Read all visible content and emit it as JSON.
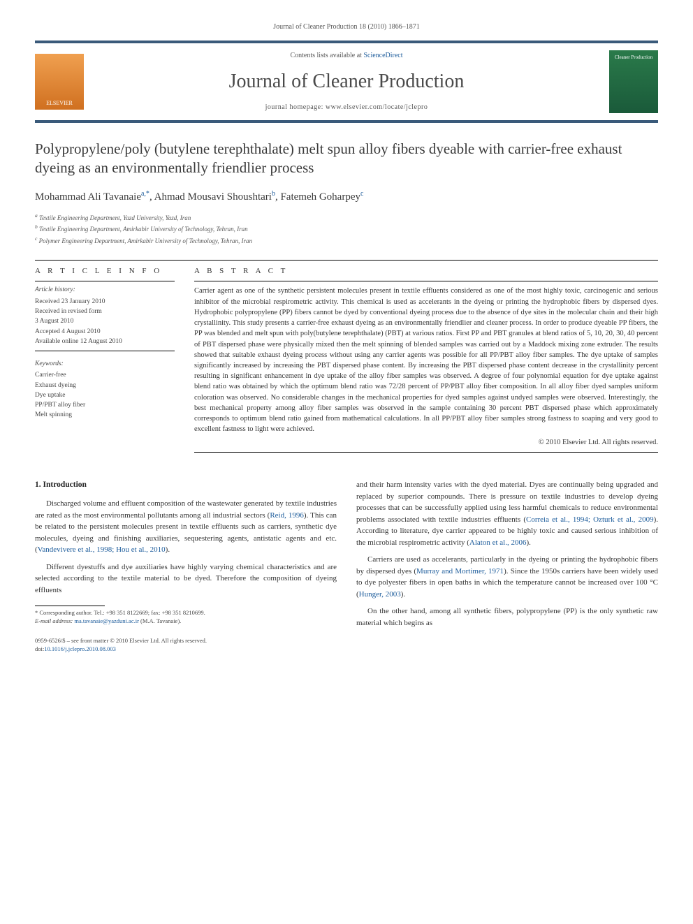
{
  "header": {
    "citation": "Journal of Cleaner Production 18 (2010) 1866–1871",
    "contents_prefix": "Contents lists available at ",
    "contents_link": "ScienceDirect",
    "journal_name": "Journal of Cleaner Production",
    "homepage_prefix": "journal homepage: ",
    "homepage_url": "www.elsevier.com/locate/jclepro",
    "elsevier_label": "ELSEVIER",
    "cover_label": "Cleaner Production"
  },
  "article": {
    "title": "Polypropylene/poly (butylene terephthalate) melt spun alloy fibers dyeable with carrier-free exhaust dyeing as an environmentally friendlier process",
    "authors_html": "Mohammad Ali Tavanaie",
    "author1": "Mohammad Ali Tavanaie",
    "author1_sup": "a,*",
    "author2": "Ahmad Mousavi Shoushtari",
    "author2_sup": "b",
    "author3": "Fatemeh Goharpey",
    "author3_sup": "c",
    "aff_a": "Textile Engineering Department, Yazd University, Yazd, Iran",
    "aff_b": "Textile Engineering Department, Amirkabir University of Technology, Tehran, Iran",
    "aff_c": "Polymer Engineering Department, Amirkabir University of Technology, Tehran, Iran"
  },
  "info": {
    "heading": "A R T I C L E   I N F O",
    "history_label": "Article history:",
    "received": "Received 23 January 2010",
    "revised": "Received in revised form",
    "revised_date": "3 August 2010",
    "accepted": "Accepted 4 August 2010",
    "online": "Available online 12 August 2010",
    "keywords_label": "Keywords:",
    "kw1": "Carrier-free",
    "kw2": "Exhaust dyeing",
    "kw3": "Dye uptake",
    "kw4": "PP/PBT alloy fiber",
    "kw5": "Melt spinning"
  },
  "abstract": {
    "heading": "A B S T R A C T",
    "text": "Carrier agent as one of the synthetic persistent molecules present in textile effluents considered as one of the most highly toxic, carcinogenic and serious inhibitor of the microbial respirometric activity. This chemical is used as accelerants in the dyeing or printing the hydrophobic fibers by dispersed dyes. Hydrophobic polypropylene (PP) fibers cannot be dyed by conventional dyeing process due to the absence of dye sites in the molecular chain and their high crystallinity. This study presents a carrier-free exhaust dyeing as an environmentally friendlier and cleaner process. In order to produce dyeable PP fibers, the PP was blended and melt spun with poly(butylene terephthalate) (PBT) at various ratios. First PP and PBT granules at blend ratios of 5, 10, 20, 30, 40 percent of PBT dispersed phase were physically mixed then the melt spinning of blended samples was carried out by a Maddock mixing zone extruder. The results showed that suitable exhaust dyeing process without using any carrier agents was possible for all PP/PBT alloy fiber samples. The dye uptake of samples significantly increased by increasing the PBT dispersed phase content. By increasing the PBT dispersed phase content decrease in the crystallinity percent resulting in significant enhancement in dye uptake of the alloy fiber samples was observed. A degree of four polynomial equation for dye uptake against blend ratio was obtained by which the optimum blend ratio was 72/28 percent of PP/PBT alloy fiber composition. In all alloy fiber dyed samples uniform coloration was observed. No considerable changes in the mechanical properties for dyed samples against undyed samples were observed. Interestingly, the best mechanical property among alloy fiber samples was observed in the sample containing 30 percent PBT dispersed phase which approximately corresponds to optimum blend ratio gained from mathematical calculations. In all PP/PBT alloy fiber samples strong fastness to soaping and very good to excellent fastness to light were achieved.",
    "copyright": "© 2010 Elsevier Ltd. All rights reserved."
  },
  "body": {
    "section1_heading": "1. Introduction",
    "p1_a": "Discharged volume and effluent composition of the wastewater generated by textile industries are rated as the most environmental pollutants among all industrial sectors (",
    "p1_cite1": "Reid, 1996",
    "p1_b": "). This can be related to the persistent molecules present in textile effluents such as carriers, synthetic dye molecules, dyeing and finishing auxiliaries, sequestering agents, antistatic agents and etc. (",
    "p1_cite2": "Vandevivere et al., 1998; Hou et al., 2010",
    "p1_c": ").",
    "p2": "Different dyestuffs and dye auxiliaries have highly varying chemical characteristics and are selected according to the textile material to be dyed. Therefore the composition of dyeing effluents",
    "p3_a": "and their harm intensity varies with the dyed material. Dyes are continually being upgraded and replaced by superior compounds. There is pressure on textile industries to develop dyeing processes that can be successfully applied using less harmful chemicals to reduce environmental problems associated with textile industries effluents (",
    "p3_cite1": "Correia et al., 1994; Ozturk et al., 2009",
    "p3_b": "). According to literature, dye carrier appeared to be highly toxic and caused serious inhibition of the microbial respirometric activity (",
    "p3_cite2": "Alaton et al., 2006",
    "p3_c": ").",
    "p4_a": "Carriers are used as accelerants, particularly in the dyeing or printing the hydrophobic fibers by dispersed dyes (",
    "p4_cite1": "Murray and Mortimer, 1971",
    "p4_b": "). Since the 1950s carriers have been widely used to dye polyester fibers in open baths in which the temperature cannot be increased over 100 °C (",
    "p4_cite2": "Hunger, 2003",
    "p4_c": ").",
    "p5": "On the other hand, among all synthetic fibers, polypropylene (PP) is the only synthetic raw material which begins as"
  },
  "footnote": {
    "corr": "* Corresponding author. Tel.: +98 351 8122669; fax: +98 351 8210699.",
    "email_label": "E-mail address: ",
    "email": "ma.tavanaie@yazduni.ac.ir",
    "email_suffix": " (M.A. Tavanaie)."
  },
  "footer": {
    "line1": "0959-6526/$ – see front matter © 2010 Elsevier Ltd. All rights reserved.",
    "doi_prefix": "doi:",
    "doi": "10.1016/j.jclepro.2010.08.003"
  },
  "colors": {
    "link": "#1a5a9a",
    "rule": "#3a5a7a",
    "text": "#333333"
  }
}
